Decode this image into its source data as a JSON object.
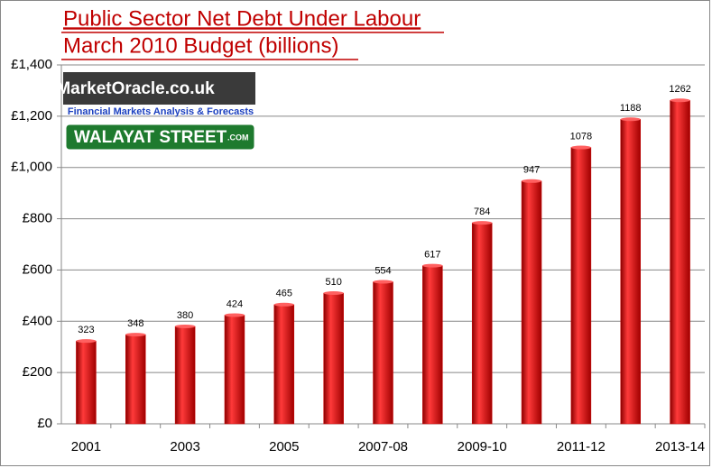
{
  "chart_data": {
    "type": "bar",
    "title": "Public Sector Net Debt Under Labour",
    "subtitle": "March 2010 Budget (billions)",
    "annotations": [
      "MarketOracle.co.uk",
      "Financial Markets Analysis & Forecasts",
      "WALAYAT STREET",
      ".COM"
    ],
    "categories": [
      "2001",
      null,
      "2003",
      null,
      "2005",
      null,
      "2007-08",
      null,
      "2009-10",
      null,
      "2011-12",
      null,
      "2013-14"
    ],
    "values": [
      323,
      348,
      380,
      424,
      465,
      510,
      554,
      617,
      784,
      947,
      1078,
      1188,
      1262
    ],
    "color": "#cc0000",
    "ylim": [
      0,
      1400
    ],
    "yticks": [
      {
        "value": 0,
        "label": "£0"
      },
      {
        "value": 200,
        "label": "£200"
      },
      {
        "value": 400,
        "label": "£400"
      },
      {
        "value": 600,
        "label": "£600"
      },
      {
        "value": 800,
        "label": "£800"
      },
      {
        "value": 1000,
        "label": "£1,000"
      },
      {
        "value": 1200,
        "label": "£1,200"
      },
      {
        "value": 1400,
        "label": "£1,400"
      }
    ],
    "grid": true
  }
}
